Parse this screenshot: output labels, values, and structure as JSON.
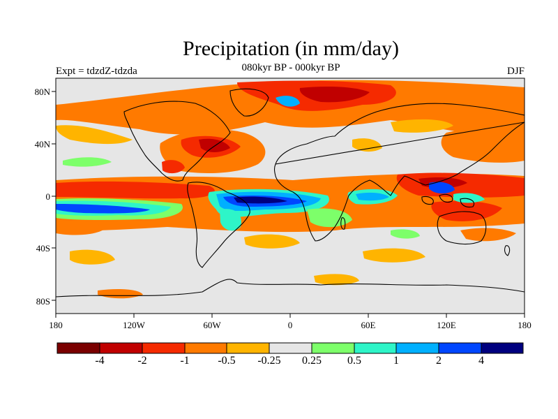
{
  "title": "Precipitation (in mm/day)",
  "subtitle": "080kyr BP - 000kyr BP",
  "experiment": "Expt = tdzdZ-tdzda",
  "season": "DJF",
  "lat_labels": [
    "80N",
    "40N",
    "0",
    "40S",
    "80S"
  ],
  "lon_labels": [
    "180",
    "120W",
    "60W",
    "0",
    "60E",
    "120E",
    "180"
  ],
  "colorbar": {
    "labels": [
      "-4",
      "-2",
      "-1",
      "-0.5",
      "-0.25",
      "0.25",
      "0.5",
      "1",
      "2",
      "4"
    ],
    "colors": [
      "#7a0000",
      "#c00000",
      "#f52a00",
      "#ff7a00",
      "#ffb400",
      "#e6e6e6",
      "#7dff6a",
      "#2ef5c8",
      "#00b0ff",
      "#0046ff",
      "#00007f"
    ]
  },
  "map_colors": {
    "background": "#e6e6e6",
    "coast": "#000000",
    "frame": "#000000"
  }
}
